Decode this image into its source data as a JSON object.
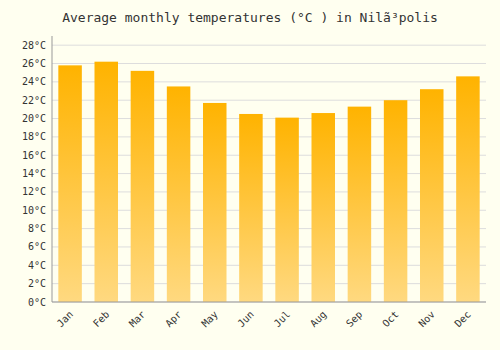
{
  "chart_data": {
    "type": "bar",
    "title": "Average monthly temperatures (°C ) in Nilã³polis",
    "categories": [
      "Jan",
      "Feb",
      "Mar",
      "Apr",
      "May",
      "Jun",
      "Jul",
      "Aug",
      "Sep",
      "Oct",
      "Nov",
      "Dec"
    ],
    "values": [
      25.8,
      26.2,
      25.2,
      23.5,
      21.7,
      20.5,
      20.1,
      20.6,
      21.3,
      22.0,
      23.2,
      24.6
    ],
    "color": "#FFB300",
    "ylim": [
      0,
      29
    ],
    "yticks": [
      {
        "value": 0,
        "label": "0°C"
      },
      {
        "value": 2,
        "label": "2°C"
      },
      {
        "value": 4,
        "label": "4°C"
      },
      {
        "value": 6,
        "label": "6°C"
      },
      {
        "value": 8,
        "label": "8°C"
      },
      {
        "value": 10,
        "label": "10°C"
      },
      {
        "value": 12,
        "label": "12°C"
      },
      {
        "value": 14,
        "label": "14°C"
      },
      {
        "value": 16,
        "label": "16°C"
      },
      {
        "value": 18,
        "label": "18°C"
      },
      {
        "value": 20,
        "label": "20°C"
      },
      {
        "value": 22,
        "label": "22°C"
      },
      {
        "value": 24,
        "label": "24°C"
      },
      {
        "value": 26,
        "label": "26°C"
      },
      {
        "value": 28,
        "label": "28°C"
      }
    ],
    "grid": true
  }
}
